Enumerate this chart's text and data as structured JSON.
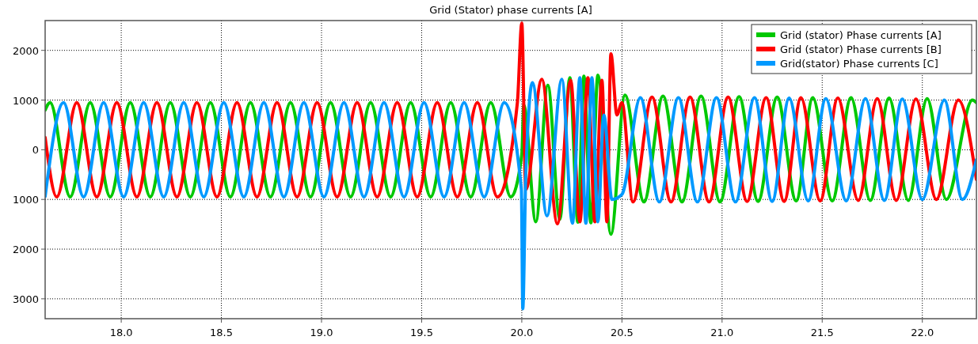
{
  "chart_data": {
    "type": "line",
    "title": "Grid (Stator) phase currents [A]",
    "xlim": [
      17.62,
      22.27
    ],
    "ylim": [
      -3400,
      2600
    ],
    "xticks": [
      {
        "value": 18,
        "label": "18.0"
      },
      {
        "value": 18.5,
        "label": "18.5"
      },
      {
        "value": 19,
        "label": "19.0"
      },
      {
        "value": 19.5,
        "label": "19.5"
      },
      {
        "value": 20,
        "label": "20.0"
      },
      {
        "value": 20.5,
        "label": "20.5"
      },
      {
        "value": 21,
        "label": "21.0"
      },
      {
        "value": 21.5,
        "label": "21.5"
      },
      {
        "value": 22,
        "label": "22.0"
      }
    ],
    "yticks": [
      2000,
      1000,
      0,
      {
        "value": -1000,
        "label": "1000"
      },
      {
        "value": -2000,
        "label": "2000"
      },
      {
        "value": -3000,
        "label": "3000"
      }
    ],
    "grid": true,
    "legend": "top right",
    "marker": "none",
    "line_style": "solid",
    "series": [
      {
        "name": "Grid (stator) Phase currents [A]",
        "color": "#00c800",
        "x": [
          17.62,
          17.645,
          17.745,
          17.845,
          17.945,
          18.045,
          18.145,
          18.245,
          18.345,
          18.445,
          18.545,
          18.645,
          18.745,
          18.845,
          18.945,
          19.045,
          19.145,
          19.245,
          19.345,
          19.445,
          19.545,
          19.645,
          19.745,
          19.845,
          19.945,
          20.0,
          20.01,
          20.07,
          20.13,
          20.19,
          20.24,
          20.28,
          20.31,
          20.345,
          20.38,
          20.445,
          20.515,
          20.61,
          20.705,
          20.8,
          20.895,
          20.99,
          21.085,
          21.18,
          21.275,
          21.37,
          21.453,
          21.55,
          21.644,
          21.74,
          21.834,
          21.93,
          22.024,
          22.12,
          22.25,
          22.27
        ],
        "values": [
          800,
          950,
          -950,
          950,
          -950,
          950,
          -950,
          950,
          -950,
          950,
          -950,
          950,
          -950,
          950,
          -950,
          950,
          -950,
          950,
          -950,
          950,
          -950,
          950,
          -950,
          950,
          -950,
          -100,
          900,
          -1450,
          1300,
          -1400,
          1450,
          -1460,
          1480,
          -1470,
          1500,
          -1700,
          1100,
          -1050,
          1080,
          -1050,
          1080,
          -1050,
          1070,
          -1040,
          1060,
          -1030,
          1050,
          -1030,
          1050,
          -1020,
          1040,
          -1020,
          1030,
          -1000,
          1000,
          950
        ]
      },
      {
        "name": "Grid (stator) Phase currents [B]",
        "color": "#ff0000",
        "x": [
          17.62,
          17.678,
          17.778,
          17.878,
          17.978,
          18.078,
          18.178,
          18.278,
          18.378,
          18.478,
          18.578,
          18.678,
          18.778,
          18.878,
          18.978,
          19.078,
          19.178,
          19.278,
          19.378,
          19.478,
          19.578,
          19.678,
          19.778,
          19.878,
          19.978,
          20.0,
          20.02,
          20.1,
          20.178,
          20.244,
          20.29,
          20.33,
          20.365,
          20.4,
          20.425,
          20.445,
          20.475,
          20.5,
          20.555,
          20.65,
          20.745,
          20.84,
          20.935,
          21.03,
          21.125,
          21.22,
          21.31,
          21.394,
          21.49,
          21.578,
          21.68,
          21.775,
          21.87,
          21.968,
          22.07,
          22.18,
          22.27
        ],
        "values": [
          250,
          -950,
          950,
          -950,
          950,
          -950,
          950,
          -950,
          950,
          -950,
          950,
          -950,
          950,
          -950,
          950,
          -950,
          950,
          -950,
          950,
          -950,
          950,
          -950,
          950,
          -950,
          950,
          2550,
          -800,
          1420,
          -1490,
          1400,
          -1450,
          1450,
          -1450,
          1400,
          -1450,
          1930,
          700,
          950,
          -1050,
          1060,
          -1050,
          1060,
          -1050,
          1060,
          -1040,
          1050,
          -1040,
          1050,
          -1030,
          1040,
          -1020,
          1030,
          -1020,
          1020,
          -1000,
          1000,
          -600
        ]
      },
      {
        "name": "Grid(stator) Phase currents [C]",
        "color": "#0099ff",
        "x": [
          17.62,
          17.712,
          17.812,
          17.912,
          18.012,
          18.112,
          18.212,
          18.312,
          18.412,
          18.512,
          18.612,
          18.712,
          18.812,
          18.912,
          19.012,
          19.112,
          19.212,
          19.312,
          19.412,
          19.512,
          19.612,
          19.712,
          19.812,
          19.912,
          19.998,
          20.005,
          20.02,
          20.053,
          20.126,
          20.2,
          20.253,
          20.29,
          20.32,
          20.35,
          20.38,
          20.41,
          20.45,
          20.5,
          20.592,
          20.687,
          20.782,
          20.877,
          20.972,
          21.067,
          21.162,
          21.25,
          21.335,
          21.43,
          21.518,
          21.62,
          21.716,
          21.81,
          21.9,
          22.0,
          22.11,
          22.2,
          22.27
        ],
        "values": [
          -940,
          950,
          -950,
          950,
          -950,
          950,
          -950,
          950,
          -950,
          950,
          -950,
          950,
          -950,
          950,
          -950,
          950,
          -950,
          950,
          -950,
          950,
          -950,
          950,
          -950,
          950,
          -800,
          -3200,
          -500,
          1350,
          -1330,
          1420,
          -1480,
          1450,
          -1480,
          1450,
          -1450,
          700,
          -1000,
          -900,
          1050,
          -1050,
          1050,
          -1050,
          1050,
          -1050,
          1050,
          -1040,
          1040,
          -1030,
          1030,
          -1030,
          1030,
          -1020,
          1020,
          -1000,
          1000,
          -1000,
          -200
        ]
      }
    ]
  }
}
